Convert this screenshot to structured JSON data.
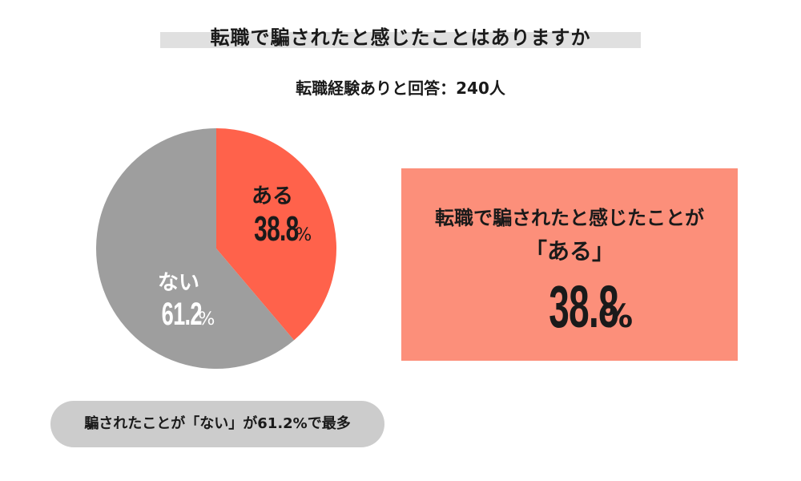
{
  "title": "転職で騙されたと感じたことはありますか",
  "subtitle": "転職経験ありと回答：240人",
  "chart_data": {
    "type": "pie",
    "title": "転職で騙されたと感じたことはありますか",
    "subtitle": "転職経験ありと回答：240人",
    "slices": [
      {
        "label": "ある",
        "value": 38.8,
        "display": "38.8",
        "unit": "%",
        "color": "#ff624b"
      },
      {
        "label": "ない",
        "value": 61.2,
        "display": "61.2",
        "unit": "%",
        "color": "#9e9e9e"
      }
    ],
    "start": "12 o'clock",
    "direction": "clockwise"
  },
  "callout": {
    "line1": "転職で騙されたと感じたことが",
    "line2": "「ある」",
    "value": "38.8",
    "unit": "%",
    "color": "#fc8f7a"
  },
  "note": {
    "text": "騙されたことが「ない」が61.2%で最多",
    "color": "#cccccc"
  }
}
